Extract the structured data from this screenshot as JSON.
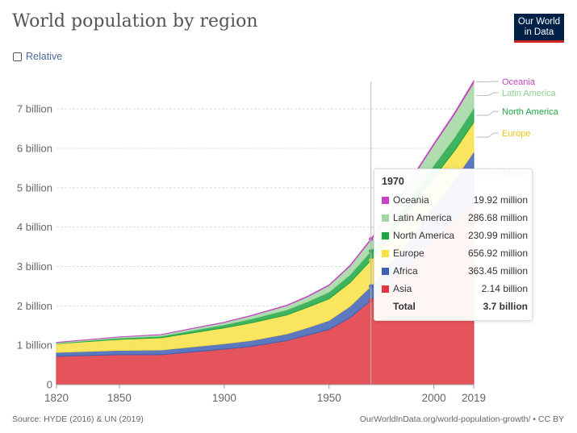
{
  "title": "World population by region",
  "logo": {
    "line1": "Our World",
    "line2": "in Data"
  },
  "relative_toggle": {
    "label": "Relative"
  },
  "chart_data": {
    "type": "area",
    "stacked": true,
    "title": "World population by region",
    "x": [
      1820,
      1850,
      1870,
      1900,
      1913,
      1930,
      1940,
      1950,
      1960,
      1970,
      1980,
      1990,
      2000,
      2010,
      2019
    ],
    "series": [
      {
        "name": "Asia",
        "color": "#e1363e",
        "values": [
          0.72,
          0.76,
          0.76,
          0.9,
          0.97,
          1.12,
          1.26,
          1.4,
          1.7,
          2.14,
          2.64,
          3.2,
          3.72,
          4.17,
          4.6
        ]
      },
      {
        "name": "Africa",
        "color": "#3f60b4",
        "values": [
          0.1,
          0.11,
          0.12,
          0.14,
          0.15,
          0.17,
          0.19,
          0.23,
          0.29,
          0.36,
          0.48,
          0.63,
          0.81,
          1.04,
          1.31
        ]
      },
      {
        "name": "Europe",
        "color": "#f9e044",
        "values": [
          0.22,
          0.28,
          0.31,
          0.4,
          0.45,
          0.48,
          0.52,
          0.55,
          0.6,
          0.66,
          0.69,
          0.72,
          0.73,
          0.74,
          0.75
        ]
      },
      {
        "name": "North America",
        "color": "#1da642",
        "values": [
          0.01,
          0.03,
          0.04,
          0.08,
          0.1,
          0.13,
          0.14,
          0.17,
          0.2,
          0.23,
          0.25,
          0.28,
          0.31,
          0.34,
          0.36
        ]
      },
      {
        "name": "Latin America",
        "color": "#a2d7a2",
        "values": [
          0.02,
          0.03,
          0.04,
          0.06,
          0.08,
          0.11,
          0.13,
          0.17,
          0.22,
          0.29,
          0.36,
          0.44,
          0.52,
          0.59,
          0.65
        ]
      },
      {
        "name": "Oceania",
        "color": "#c543c4",
        "values": [
          0.002,
          0.002,
          0.003,
          0.006,
          0.008,
          0.01,
          0.011,
          0.013,
          0.016,
          0.02,
          0.023,
          0.027,
          0.031,
          0.037,
          0.042
        ]
      }
    ],
    "ylim": [
      0,
      7.7
    ],
    "yticks": [
      0,
      1,
      2,
      3,
      4,
      5,
      6,
      7
    ],
    "ytick_labels": [
      "0",
      "1 billion",
      "2 billion",
      "3 billion",
      "4 billion",
      "5 billion",
      "6 billion",
      "7 billion"
    ],
    "xticks": [
      1820,
      1850,
      1900,
      1950,
      2000,
      2019
    ],
    "highlight_year": 1970,
    "legend_labels": [
      "Oceania",
      "Latin America",
      "North America",
      "Europe",
      "Africa"
    ],
    "grid": true
  },
  "tooltip": {
    "year": "1970",
    "rows": [
      {
        "name": "Oceania",
        "value": "19.92 million",
        "color": "#c543c4"
      },
      {
        "name": "Latin America",
        "value": "286.68 million",
        "color": "#a2d7a2"
      },
      {
        "name": "North America",
        "value": "230.99 million",
        "color": "#1da642"
      },
      {
        "name": "Europe",
        "value": "656.92 million",
        "color": "#f9e044"
      },
      {
        "name": "Africa",
        "value": "363.45 million",
        "color": "#3f60b4"
      },
      {
        "name": "Asia",
        "value": "2.14 billion",
        "color": "#e1363e"
      }
    ],
    "total_label": "Total",
    "total_value": "3.7 billion"
  },
  "footer": {
    "source": "Source: HYDE (2016) & UN (2019)",
    "right": "OurWorldInData.org/world-population-growth/ • CC BY"
  }
}
